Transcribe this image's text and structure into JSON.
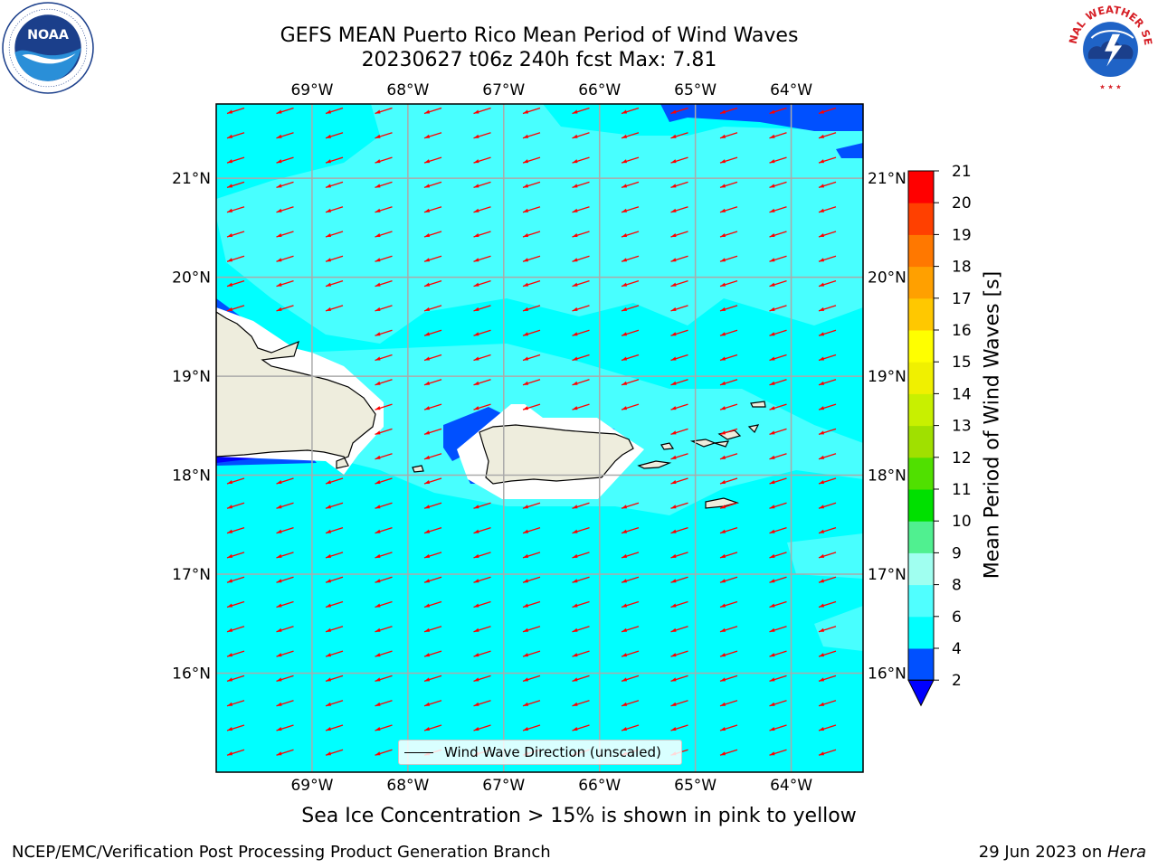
{
  "title": {
    "line1": "GEFS MEAN Puerto Rico Mean Period of Wind Waves",
    "line2": "20230627 t06z 240h fcst   Max: 7.81"
  },
  "logos": {
    "left": {
      "name": "noaa-logo",
      "text": "NOAA",
      "ring_text": "NATIONAL OCEANIC AND ATMOSPHERIC ADMINISTRATION · U.S. DEPARTMENT OF COMMERCE",
      "color": "#1b3f8b"
    },
    "right": {
      "name": "nws-logo",
      "ring_text": "NATIONAL WEATHER SERVICE",
      "color": "#d61f26"
    }
  },
  "map": {
    "lon_ticks": [
      "69°W",
      "68°W",
      "67°W",
      "66°W",
      "65°W",
      "64°W"
    ],
    "lat_ticks": [
      "21°N",
      "20°N",
      "19°N",
      "18°N",
      "17°N",
      "16°N"
    ],
    "lon_range": [
      -70.0,
      -63.25
    ],
    "lat_range": [
      15.0,
      21.75
    ],
    "grid_lons": [
      -69,
      -68,
      -67,
      -66,
      -65,
      -64
    ],
    "grid_lats": [
      21,
      20,
      19,
      18,
      17,
      16
    ],
    "background_color": "#00ffff",
    "land_color": "#eeeddd",
    "arrow_color": "#ff0000",
    "wind_direction": "east-northeast to west-southwest"
  },
  "legend": {
    "label": "Wind Wave Direction (unscaled)"
  },
  "colorbar": {
    "label": "Mean Period of Wind Waves [s]",
    "ticks": [
      "2",
      "4",
      "6",
      "8",
      "9",
      "10",
      "11",
      "12",
      "13",
      "14",
      "15",
      "16",
      "17",
      "18",
      "19",
      "20",
      "21"
    ],
    "colors": [
      "#0050ff",
      "#00ffff",
      "#50ffff",
      "#a0fff0",
      "#50f090",
      "#00e000",
      "#50e000",
      "#a0e000",
      "#c8f000",
      "#f0f000",
      "#ffff00",
      "#ffc800",
      "#ffa000",
      "#ff7800",
      "#ff4000",
      "#ff0000"
    ],
    "under_color": "#0000ff"
  },
  "footer": {
    "ice_note": "Sea Ice Concentration > 15% is shown in pink to yellow",
    "credit_left": "NCEP/EMC/Verification Post Processing Product Generation Branch",
    "date_text": "29 Jun 2023 on ",
    "host": "Hera"
  }
}
